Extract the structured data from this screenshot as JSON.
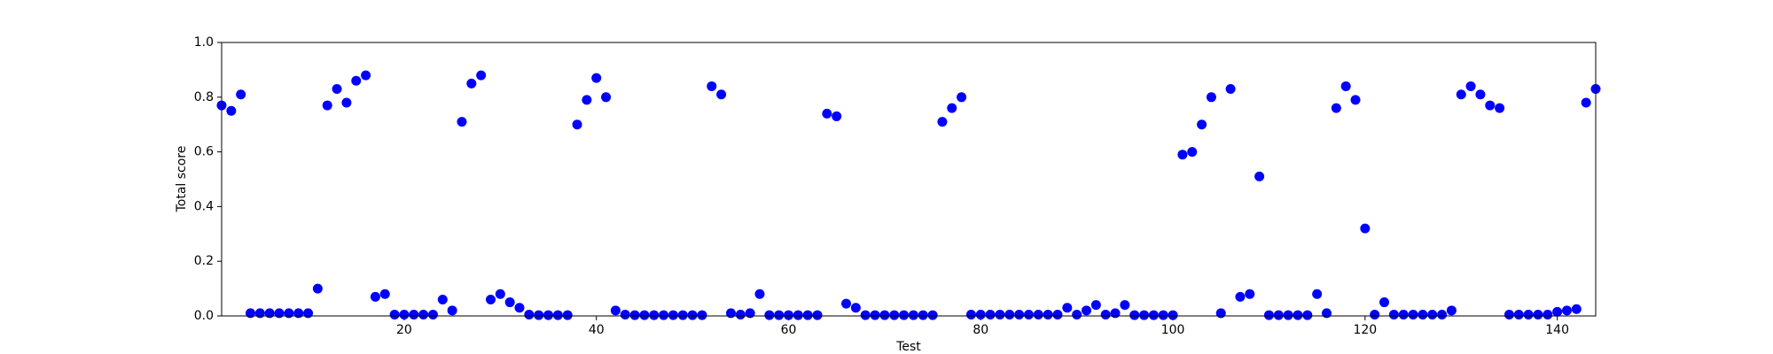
{
  "chart_data": {
    "type": "scatter",
    "xlabel": "Test",
    "ylabel": "Total score",
    "x": [
      1,
      2,
      3,
      4,
      5,
      6,
      7,
      8,
      9,
      10,
      11,
      12,
      13,
      14,
      15,
      16,
      17,
      18,
      19,
      20,
      21,
      22,
      23,
      24,
      25,
      26,
      27,
      28,
      29,
      30,
      31,
      32,
      33,
      34,
      35,
      36,
      37,
      38,
      39,
      40,
      41,
      42,
      43,
      44,
      45,
      46,
      47,
      48,
      49,
      50,
      51,
      52,
      53,
      54,
      55,
      56,
      57,
      58,
      59,
      60,
      61,
      62,
      63,
      64,
      65,
      66,
      67,
      68,
      69,
      70,
      71,
      72,
      73,
      74,
      75,
      76,
      77,
      78,
      79,
      80,
      81,
      82,
      83,
      84,
      85,
      86,
      87,
      88,
      89,
      90,
      91,
      92,
      93,
      94,
      95,
      96,
      97,
      98,
      99,
      100,
      101,
      102,
      103,
      104,
      105,
      106,
      107,
      108,
      109,
      110,
      111,
      112,
      113,
      114,
      115,
      116,
      117,
      118,
      119,
      120,
      121,
      122,
      123,
      124,
      125,
      126,
      127,
      128,
      129,
      130,
      131,
      132,
      133,
      134,
      135,
      136,
      137,
      138,
      139,
      140,
      141,
      142,
      143,
      144
    ],
    "values": [
      0.77,
      0.75,
      0.81,
      0.01,
      0.01,
      0.01,
      0.01,
      0.01,
      0.01,
      0.01,
      0.1,
      0.77,
      0.83,
      0.78,
      0.86,
      0.88,
      0.07,
      0.08,
      0.005,
      0.005,
      0.005,
      0.005,
      0.005,
      0.06,
      0.02,
      0.71,
      0.85,
      0.88,
      0.06,
      0.08,
      0.05,
      0.03,
      0.005,
      0.003,
      0.003,
      0.003,
      0.003,
      0.7,
      0.79,
      0.87,
      0.8,
      0.02,
      0.005,
      0.003,
      0.003,
      0.003,
      0.003,
      0.003,
      0.003,
      0.003,
      0.003,
      0.84,
      0.81,
      0.01,
      0.005,
      0.01,
      0.08,
      0.003,
      0.003,
      0.003,
      0.003,
      0.003,
      0.003,
      0.74,
      0.73,
      0.045,
      0.03,
      0.003,
      0.003,
      0.003,
      0.003,
      0.003,
      0.003,
      0.003,
      0.003,
      0.71,
      0.76,
      0.8,
      0.005,
      0.005,
      0.005,
      0.005,
      0.005,
      0.005,
      0.005,
      0.005,
      0.005,
      0.005,
      0.03,
      0.005,
      0.02,
      0.04,
      0.005,
      0.01,
      0.04,
      0.003,
      0.003,
      0.003,
      0.003,
      0.003,
      0.59,
      0.6,
      0.7,
      0.8,
      0.01,
      0.83,
      0.07,
      0.08,
      0.51,
      0.003,
      0.003,
      0.003,
      0.003,
      0.003,
      0.08,
      0.01,
      0.76,
      0.84,
      0.79,
      0.32,
      0.005,
      0.05,
      0.005,
      0.005,
      0.005,
      0.005,
      0.005,
      0.005,
      0.02,
      0.81,
      0.84,
      0.81,
      0.77,
      0.76,
      0.005,
      0.005,
      0.005,
      0.005,
      0.005,
      0.015,
      0.02,
      0.025,
      0.78,
      0.83
    ],
    "color": "#0000ff",
    "xlim": [
      1,
      144
    ],
    "xticks": [
      20,
      40,
      60,
      80,
      100,
      120,
      140
    ],
    "ylim": [
      0,
      1
    ],
    "yticks": [
      {
        "value": 0,
        "label": "0.0"
      },
      {
        "value": 0.2,
        "label": "0.2"
      },
      {
        "value": 0.4,
        "label": "0.4"
      },
      {
        "value": 0.6,
        "label": "0.6"
      },
      {
        "value": 0.8,
        "label": "0.8"
      },
      {
        "value": 1,
        "label": "1.0"
      }
    ]
  }
}
